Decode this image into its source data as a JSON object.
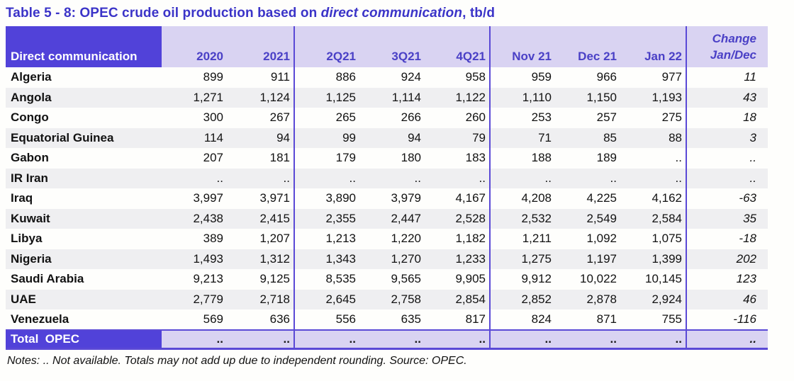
{
  "title": {
    "prefix": "Table 5 - 8: OPEC crude oil production based on ",
    "italic": "direct communication",
    "suffix": ", tb/d"
  },
  "table": {
    "label_header": "Direct communication",
    "columns": [
      "2020",
      "2021",
      "2Q21",
      "3Q21",
      "4Q21",
      "Nov 21",
      "Dec 21",
      "Jan 22"
    ],
    "change_header_line1": "Change",
    "change_header_line2": "Jan/Dec",
    "rows": [
      {
        "country": "Algeria",
        "values": [
          "899",
          "911",
          "886",
          "924",
          "958",
          "959",
          "966",
          "977"
        ],
        "change": "11"
      },
      {
        "country": "Angola",
        "values": [
          "1,271",
          "1,124",
          "1,125",
          "1,114",
          "1,122",
          "1,110",
          "1,150",
          "1,193"
        ],
        "change": "43"
      },
      {
        "country": "Congo",
        "values": [
          "300",
          "267",
          "265",
          "266",
          "260",
          "253",
          "257",
          "275"
        ],
        "change": "18"
      },
      {
        "country": "Equatorial Guinea",
        "values": [
          "114",
          "94",
          "99",
          "94",
          "79",
          "71",
          "85",
          "88"
        ],
        "change": "3"
      },
      {
        "country": "Gabon",
        "values": [
          "207",
          "181",
          "179",
          "180",
          "183",
          "188",
          "189",
          ".."
        ],
        "change": ".."
      },
      {
        "country": "IR Iran",
        "values": [
          "..",
          "..",
          "..",
          "..",
          "..",
          "..",
          "..",
          ".."
        ],
        "change": ".."
      },
      {
        "country": "Iraq",
        "values": [
          "3,997",
          "3,971",
          "3,890",
          "3,979",
          "4,167",
          "4,208",
          "4,225",
          "4,162"
        ],
        "change": "-63"
      },
      {
        "country": "Kuwait",
        "values": [
          "2,438",
          "2,415",
          "2,355",
          "2,447",
          "2,528",
          "2,532",
          "2,549",
          "2,584"
        ],
        "change": "35"
      },
      {
        "country": "Libya",
        "values": [
          "389",
          "1,207",
          "1,213",
          "1,220",
          "1,182",
          "1,211",
          "1,092",
          "1,075"
        ],
        "change": "-18"
      },
      {
        "country": "Nigeria",
        "values": [
          "1,493",
          "1,312",
          "1,343",
          "1,270",
          "1,233",
          "1,275",
          "1,197",
          "1,399"
        ],
        "change": "202"
      },
      {
        "country": "Saudi Arabia",
        "values": [
          "9,213",
          "9,125",
          "8,535",
          "9,565",
          "9,905",
          "9,912",
          "10,022",
          "10,145"
        ],
        "change": "123"
      },
      {
        "country": "UAE",
        "values": [
          "2,779",
          "2,718",
          "2,645",
          "2,758",
          "2,854",
          "2,852",
          "2,878",
          "2,924"
        ],
        "change": "46"
      },
      {
        "country": "Venezuela",
        "values": [
          "569",
          "636",
          "556",
          "635",
          "817",
          "824",
          "871",
          "755"
        ],
        "change": "-116"
      }
    ],
    "total": {
      "label": "Total  OPEC",
      "values": [
        "..",
        "..",
        "..",
        "..",
        "..",
        "..",
        "..",
        ".."
      ],
      "change": ".."
    }
  },
  "notes": "Notes:  .. Not available. Totals may not add up due to independent rounding. Source: OPEC.",
  "colors": {
    "header_dark_purple": "#5142d9",
    "header_lavender": "#d9d3f2",
    "header_text_purple": "#4a40c6",
    "title_purple": "#3b34c8",
    "separator_purple": "#5a49d6",
    "row_stripe_gray": "#efeff1"
  }
}
